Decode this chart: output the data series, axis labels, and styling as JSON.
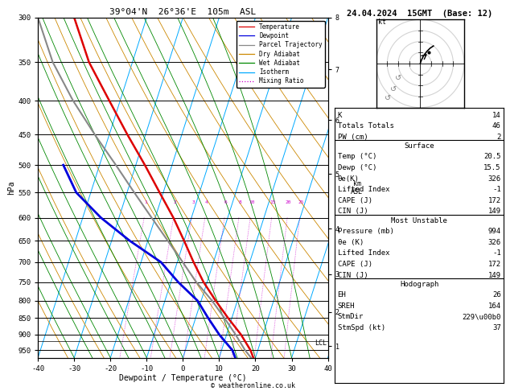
{
  "title_left": "39°04'N  26°36'E  105m  ASL",
  "title_right": "24.04.2024  15GMT  (Base: 12)",
  "xlabel": "Dewpoint / Temperature (°C)",
  "copyright": "© weatheronline.co.uk",
  "background_color": "#ffffff",
  "pressure_levels": [
    300,
    350,
    400,
    450,
    500,
    550,
    600,
    650,
    700,
    750,
    800,
    850,
    900,
    950
  ],
  "pressure_surface": 994,
  "pressure_min": 300,
  "pressure_max": 975,
  "temp_min": -40,
  "temp_max": 40,
  "skew_deg": 45,
  "temp_profile_p": [
    994,
    950,
    900,
    850,
    800,
    750,
    700,
    650,
    600,
    550,
    500,
    450,
    400,
    350,
    300
  ],
  "temp_profile_t": [
    20.5,
    18.0,
    14.0,
    9.0,
    4.0,
    -1.0,
    -5.5,
    -10.0,
    -15.0,
    -21.0,
    -27.5,
    -35.0,
    -43.0,
    -52.0,
    -60.0
  ],
  "dewp_profile_p": [
    994,
    950,
    900,
    850,
    800,
    750,
    700,
    650,
    600,
    550,
    500
  ],
  "dewp_profile_t": [
    15.5,
    13.0,
    8.0,
    3.5,
    -1.0,
    -8.0,
    -14.5,
    -25.0,
    -35.0,
    -44.0,
    -50.0
  ],
  "parcel_profile_p": [
    994,
    950,
    900,
    850,
    800,
    750,
    700,
    650,
    600,
    550,
    500,
    450,
    400,
    350,
    300
  ],
  "parcel_profile_t": [
    20.5,
    16.5,
    12.5,
    8.0,
    3.0,
    -3.0,
    -8.5,
    -14.5,
    -21.0,
    -28.0,
    -35.5,
    -44.0,
    -53.0,
    -62.0,
    -70.0
  ],
  "lcl_pressure": 920,
  "isotherm_temps": [
    -40,
    -30,
    -20,
    -10,
    0,
    10,
    20,
    30,
    40
  ],
  "isotherm_color": "#00aaff",
  "dry_adiabat_color": "#cc8800",
  "wet_adiabat_color": "#008800",
  "mixing_ratio_color": "#cc00cc",
  "mixing_ratio_values": [
    1,
    2,
    3,
    4,
    6,
    8,
    10,
    15,
    20,
    25
  ],
  "temp_color": "#dd0000",
  "dewp_color": "#0000dd",
  "parcel_color": "#888888",
  "legend_entries": [
    "Temperature",
    "Dewpoint",
    "Parcel Trajectory",
    "Dry Adiabat",
    "Wet Adiabat",
    "Isotherm",
    "Mixing Ratio"
  ],
  "legend_colors": [
    "#dd0000",
    "#0000dd",
    "#888888",
    "#cc8800",
    "#008800",
    "#00aaff",
    "#cc00cc"
  ],
  "legend_styles": [
    "solid",
    "solid",
    "solid",
    "solid",
    "solid",
    "solid",
    "dotted"
  ],
  "km_pressures": [
    925,
    790,
    665,
    540,
    420,
    328,
    260,
    205
  ],
  "km_labels": [
    "1",
    "2",
    "3",
    "4",
    "5",
    "6",
    "7",
    "8"
  ],
  "stats": {
    "K": "14",
    "Totals Totals": "46",
    "PW (cm)": "2",
    "Surface_title": "Surface",
    "Temp (\\u00b0C)": "20.5",
    "Dewp (\\u00b0C)": "15.5",
    "\\u03b8e(K)": "326",
    "Lifted Index": "-1",
    "CAPE (J)": "172",
    "CIN (J)": "149",
    "MU_title": "Most Unstable",
    "Pressure (mb)": "994",
    "\\u03b8e (K)": "326",
    "MU_LI": "-1",
    "MU_CAPE": "172",
    "MU_CIN": "149",
    "Hodo_title": "Hodograph",
    "EH": "26",
    "SREH": "164",
    "StmDir": "229\\u00b0",
    "StmSpd (kt)": "37"
  }
}
